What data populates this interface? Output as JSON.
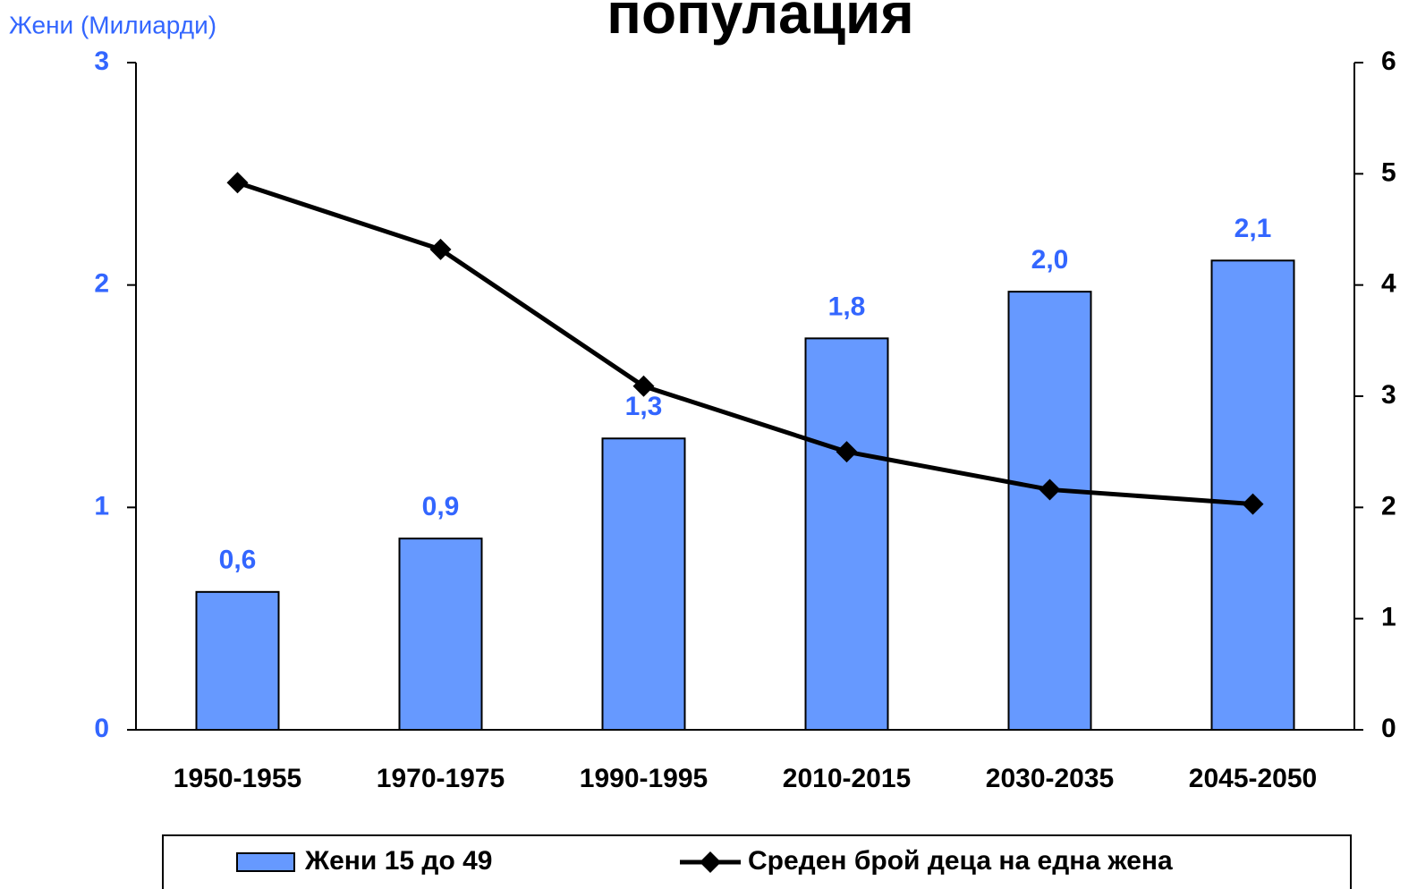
{
  "chart_data": {
    "type": "bar+line",
    "title": "популация",
    "ylabel": "Жени (Милиарди)",
    "categories": [
      "1950-1955",
      "1970-1975",
      "1990-1995",
      "2010-2015",
      "2030-2035",
      "2045-2050"
    ],
    "series": [
      {
        "name": "Жени 15 до 49",
        "type": "bar",
        "axis": "y",
        "color": "#6699ff",
        "values": [
          0.62,
          0.86,
          1.31,
          1.76,
          1.97,
          2.11
        ],
        "value_labels": [
          "0,6",
          "0,9",
          "1,3",
          "1,8",
          "2,0",
          "2,1"
        ]
      },
      {
        "name": "Среден брой деца на една жена",
        "type": "line",
        "axis": "y2",
        "color": "#000000",
        "values": [
          4.92,
          4.32,
          3.09,
          2.5,
          2.16,
          2.03
        ]
      }
    ],
    "ylim": [
      0,
      3
    ],
    "yticks": [
      0,
      1,
      2,
      3
    ],
    "y2lim": [
      0,
      6
    ],
    "y2ticks": [
      0,
      1,
      2,
      3,
      4,
      5,
      6
    ]
  }
}
